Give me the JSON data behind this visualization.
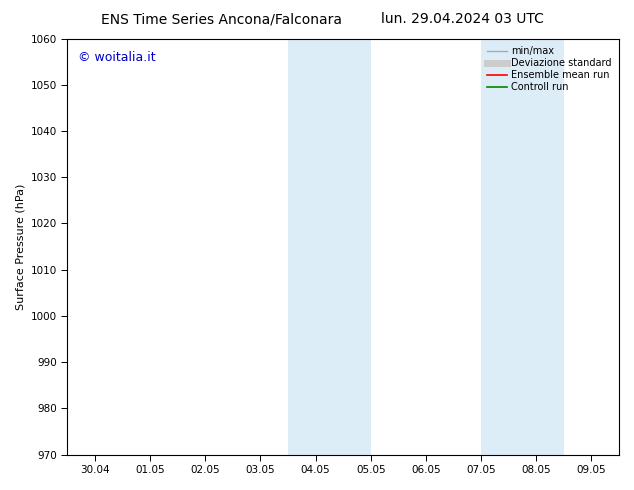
{
  "title_left": "ENS Time Series Ancona/Falconara",
  "title_right": "lun. 29.04.2024 03 UTC",
  "ylabel": "Surface Pressure (hPa)",
  "ylim": [
    970,
    1060
  ],
  "yticks": [
    970,
    980,
    990,
    1000,
    1010,
    1020,
    1030,
    1040,
    1050,
    1060
  ],
  "xtick_labels": [
    "30.04",
    "01.05",
    "02.05",
    "03.05",
    "04.05",
    "05.05",
    "06.05",
    "07.05",
    "08.05",
    "09.05"
  ],
  "bg_color": "#ffffff",
  "plot_bg_color": "#ffffff",
  "shaded_bands": [
    {
      "xstart": 4.0,
      "xend": 4.5,
      "color": "#ddedf8"
    },
    {
      "xstart": 4.5,
      "xend": 5.0,
      "color": "#ddedf8"
    },
    {
      "xstart": 5.0,
      "xend": 5.5,
      "color": "#ddedf8"
    },
    {
      "xstart": 7.5,
      "xend": 8.0,
      "color": "#ddedf8"
    },
    {
      "xstart": 8.0,
      "xend": 8.5,
      "color": "#ddedf8"
    },
    {
      "xstart": 8.5,
      "xend": 9.0,
      "color": "#ddedf8"
    }
  ],
  "legend_entries": [
    {
      "label": "min/max",
      "color": "#aaaaaa",
      "lw": 1.0,
      "ls": "-"
    },
    {
      "label": "Deviazione standard",
      "color": "#cccccc",
      "lw": 5,
      "ls": "-"
    },
    {
      "label": "Ensemble mean run",
      "color": "#ff0000",
      "lw": 1.2,
      "ls": "-"
    },
    {
      "label": "Controll run",
      "color": "#008800",
      "lw": 1.2,
      "ls": "-"
    }
  ],
  "watermark": "© woitalia.it",
  "watermark_color": "#0000cc",
  "watermark_fontsize": 9,
  "title_fontsize": 10,
  "axis_label_fontsize": 8,
  "tick_fontsize": 7.5,
  "legend_fontsize": 7,
  "spine_color": "#000000",
  "fig_width": 6.34,
  "fig_height": 4.9,
  "dpi": 100
}
